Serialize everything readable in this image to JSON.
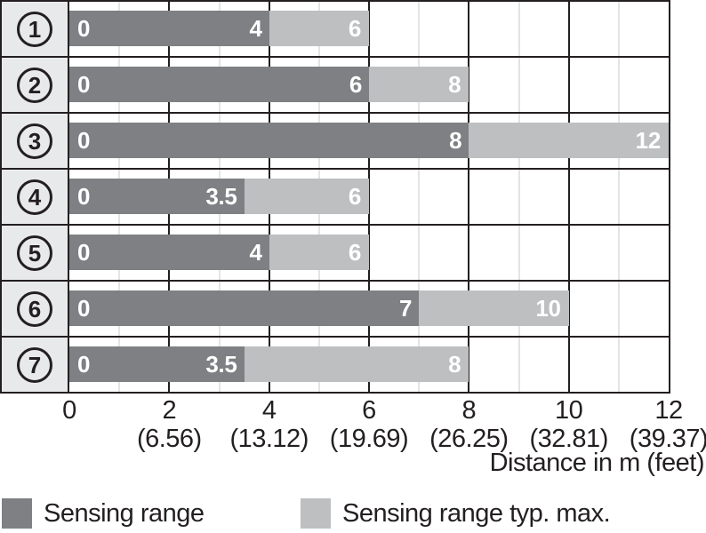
{
  "chart_data": {
    "type": "bar",
    "orientation": "horizontal",
    "xlabel": "Distance in m (feet)",
    "x_axis": {
      "min": 0,
      "max": 12,
      "major_tick_step": 2,
      "minor_tick_step": 1,
      "grid": true,
      "ticks": [
        {
          "value": 0,
          "label_m": "0",
          "label_feet": ""
        },
        {
          "value": 2,
          "label_m": "2",
          "label_feet": "(6.56)"
        },
        {
          "value": 4,
          "label_m": "4",
          "label_feet": "(13.12)"
        },
        {
          "value": 6,
          "label_m": "6",
          "label_feet": "(19.69)"
        },
        {
          "value": 8,
          "label_m": "8",
          "label_feet": "(26.25)"
        },
        {
          "value": 10,
          "label_m": "10",
          "label_feet": "(32.81)"
        },
        {
          "value": 12,
          "label_m": "12",
          "label_feet": "(39.37)"
        }
      ]
    },
    "rows": [
      {
        "index": "1",
        "sensing_range_start": 0,
        "sensing_range_end": 4,
        "typ_max_end": 6,
        "start_label": "0",
        "range_label": "4",
        "typ_max_label": "6"
      },
      {
        "index": "2",
        "sensing_range_start": 0,
        "sensing_range_end": 6,
        "typ_max_end": 8,
        "start_label": "0",
        "range_label": "6",
        "typ_max_label": "8"
      },
      {
        "index": "3",
        "sensing_range_start": 0,
        "sensing_range_end": 8,
        "typ_max_end": 12,
        "start_label": "0",
        "range_label": "8",
        "typ_max_label": "12"
      },
      {
        "index": "4",
        "sensing_range_start": 0,
        "sensing_range_end": 3.5,
        "typ_max_end": 6,
        "start_label": "0",
        "range_label": "3.5",
        "typ_max_label": "6"
      },
      {
        "index": "5",
        "sensing_range_start": 0,
        "sensing_range_end": 4,
        "typ_max_end": 6,
        "start_label": "0",
        "range_label": "4",
        "typ_max_label": "6"
      },
      {
        "index": "6",
        "sensing_range_start": 0,
        "sensing_range_end": 7,
        "typ_max_end": 10,
        "start_label": "0",
        "range_label": "7",
        "typ_max_label": "10"
      },
      {
        "index": "7",
        "sensing_range_start": 0,
        "sensing_range_end": 3.5,
        "typ_max_end": 8,
        "start_label": "0",
        "range_label": "3.5",
        "typ_max_label": "8"
      }
    ],
    "legend": [
      {
        "label": "Sensing range",
        "swatch": "dark"
      },
      {
        "label": "Sensing range typ. max.",
        "swatch": "light"
      }
    ],
    "colors": {
      "sensing_range": "#7e8083",
      "typ_max": "#bdbfc1",
      "row_label_bg": "#e8e9ea",
      "grid_major": "#231f20",
      "grid_minor": "#c9cacc",
      "bar_text": "#ffffff",
      "text": "#231f20"
    }
  }
}
